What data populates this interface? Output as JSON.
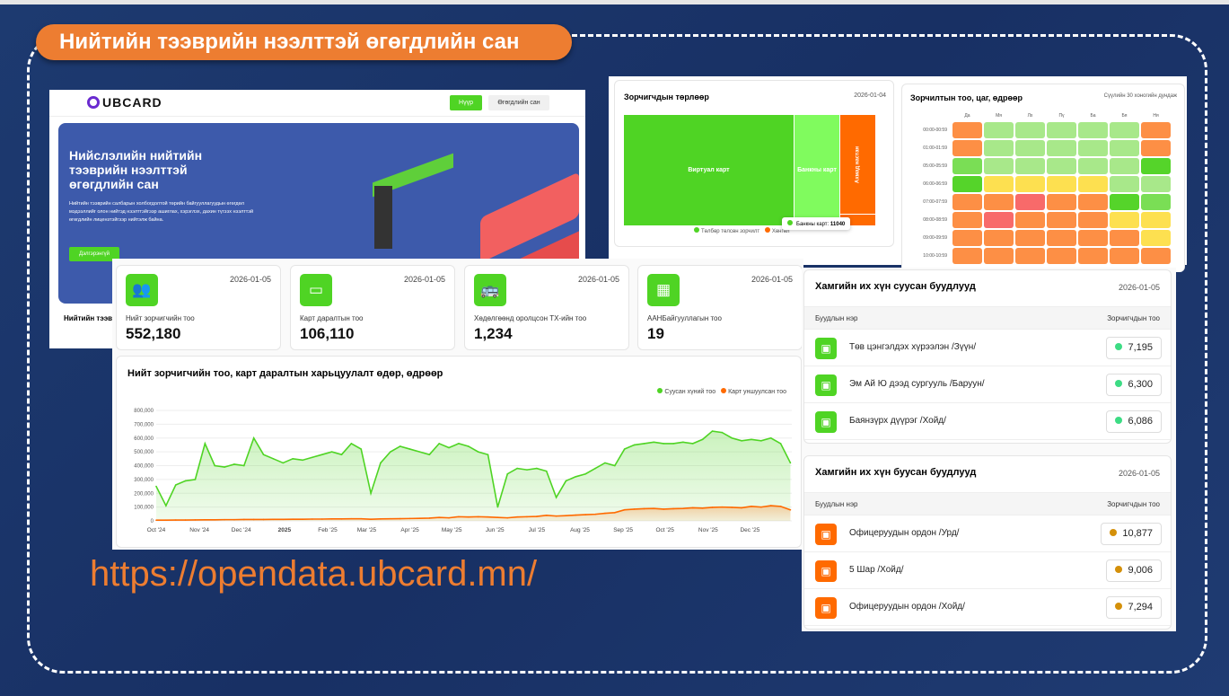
{
  "slide": {
    "title": "Нийтийн тээврийн нээлттэй өгөгдлийн сан",
    "url": "https://opendata.ubcard.mn/"
  },
  "landing": {
    "logo": "UBCARD",
    "nav": [
      "Нүүр",
      "Өгөгдлийн сан"
    ],
    "hero_title": "Нийслэлийн нийтийн тээврийн нээлттэй өгөгдлийн сан",
    "hero_text": "Нийтийн тээврийн салбарын холбогдолтой төрийн байгууллагуудын өгөгдөл мэдээллийг олон нийтэд нээлттэйгээр ашиглах, хэрэглэх, дахин түгээх нээлттэй өгөгдлийн лицензтэйгээр нийтэлж байна.",
    "more_button": "Дэлгэрэнгүй",
    "section_label": "Нийтийн тээвр"
  },
  "stats": [
    {
      "icon": "users-icon",
      "glyph": "👥",
      "date": "2026-01-05",
      "label": "Нийт зорчигчийн тоо",
      "value": "552,180"
    },
    {
      "icon": "card-icon",
      "glyph": "▭",
      "date": "2026-01-05",
      "label": "Карт даралтын тоо",
      "value": "106,110"
    },
    {
      "icon": "bus-icon",
      "glyph": "🚌",
      "date": "2026-01-05",
      "label": "Хөдөлгөөнд оролцсон ТХ-ийн тоо",
      "value": "1,234"
    },
    {
      "icon": "building-icon",
      "glyph": "▦",
      "date": "2026-01-05",
      "label": "ААНБайгууллагын тоо",
      "value": "19"
    }
  ],
  "treemap": {
    "title": "Зорчигчдын төрлөөр",
    "date": "2026-01-04",
    "tiles": [
      "Виртуал карт",
      "Банкны карт",
      "Ахмад настан"
    ],
    "legend": [
      "Төлбөр төлсөн зорчилт",
      "Хөнгөл"
    ],
    "tooltip": {
      "label": "Банкны карт:",
      "value": "11040"
    },
    "colors": {
      "paid": "#4fd424",
      "paid_light": "#80fb5e",
      "discount": "#ff6a00"
    }
  },
  "heatmap": {
    "title": "Зорчилтын тоо, цаг, өдрөөр",
    "subtitle": "Сүүлийн 30 хоногийн дундаж",
    "days": [
      "Да",
      "Мя",
      "Лх",
      "Пү",
      "Ба",
      "Бя",
      "Ня"
    ],
    "hours": [
      "00:00-00:59",
      "01:00-01:59",
      "05:00-05:59",
      "06:00-06:59",
      "07:00-07:59",
      "08:00-08:59",
      "09:00-09:59",
      "10:00-10:59"
    ],
    "palette": {
      "O": "#fd8f45",
      "L": "#a8e88a",
      "G": "#7ade55",
      "D": "#55d42a",
      "Y": "#fde050",
      "R": "#f86a6a"
    },
    "cells": [
      [
        "O",
        "L",
        "L",
        "L",
        "L",
        "L",
        "O"
      ],
      [
        "O",
        "L",
        "L",
        "L",
        "L",
        "L",
        "O"
      ],
      [
        "G",
        "L",
        "L",
        "L",
        "L",
        "L",
        "D"
      ],
      [
        "D",
        "Y",
        "Y",
        "Y",
        "Y",
        "L",
        "L"
      ],
      [
        "O",
        "O",
        "R",
        "O",
        "O",
        "D",
        "G"
      ],
      [
        "O",
        "R",
        "O",
        "O",
        "O",
        "Y",
        "Y"
      ],
      [
        "O",
        "O",
        "O",
        "O",
        "O",
        "O",
        "Y"
      ],
      [
        "O",
        "O",
        "O",
        "O",
        "O",
        "O",
        "O"
      ]
    ]
  },
  "boarded": {
    "title": "Хамгийн их хүн суусан буудлууд",
    "date": "2026-01-05",
    "col_name": "Буудлын нэр",
    "col_count": "Зорчигчдын тоо",
    "color": "#4fd424",
    "dot": "#3ddc84",
    "rows": [
      {
        "name": "Төв цэнгэлдэх хүрээлэн /Зүүн/",
        "count": "7,195"
      },
      {
        "name": "Эм Ай Ю дээд сургууль /Баруун/",
        "count": "6,300"
      },
      {
        "name": "Баянзүрх дүүрэг /Хойд/",
        "count": "6,086"
      }
    ]
  },
  "alighted": {
    "title": "Хамгийн их хүн буусан буудлууд",
    "date": "2026-01-05",
    "col_name": "Буудлын нэр",
    "col_count": "Зорчигчдын тоо",
    "color": "#ff6a00",
    "dot": "#d4900a",
    "rows": [
      {
        "name": "Офицеруудын ордон /Урд/",
        "count": "10,877"
      },
      {
        "name": "5 Шар /Хойд/",
        "count": "9,006"
      },
      {
        "name": "Офицеруудын ордон /Хойд/",
        "count": "7,294"
      }
    ]
  },
  "chart_data": {
    "type": "line",
    "title": "Нийт зорчигчийн тоо, карт даралтын харьцуулалт өдөр, өдрөөр",
    "ylim": [
      0,
      800000
    ],
    "yticks": [
      "0",
      "100,000",
      "200,000",
      "300,000",
      "400,000",
      "500,000",
      "600,000",
      "700,000",
      "800,000"
    ],
    "xticks": [
      {
        "label": "Oct '24",
        "date": "2024-10-01"
      },
      {
        "label": "Nov '24",
        "date": "2024-11-01"
      },
      {
        "label": "Dec '24",
        "date": "2024-12-01"
      },
      {
        "label": "2025",
        "date": "2025-01-01",
        "bold": true
      },
      {
        "label": "Feb '25",
        "date": "2025-02-01"
      },
      {
        "label": "Mar '25",
        "date": "2025-03-01"
      },
      {
        "label": "Apr '25",
        "date": "2025-04-01"
      },
      {
        "label": "May '25",
        "date": "2025-05-01"
      },
      {
        "label": "Jun '25",
        "date": "2025-06-01"
      },
      {
        "label": "Jul '25",
        "date": "2025-07-01"
      },
      {
        "label": "Aug '25",
        "date": "2025-08-01"
      },
      {
        "label": "Sep '25",
        "date": "2025-09-01"
      },
      {
        "label": "Oct '25",
        "date": "2025-10-01"
      },
      {
        "label": "Nov '25",
        "date": "2025-11-01"
      },
      {
        "label": "Dec '25",
        "date": "2025-12-01"
      }
    ],
    "xlim": [
      "2024-10-01",
      "2025-12-31"
    ],
    "legend": "top-right",
    "grid": true,
    "x": [
      "2024-10-01",
      "2024-10-08",
      "2024-10-15",
      "2024-10-22",
      "2024-10-29",
      "2024-11-05",
      "2024-11-12",
      "2024-11-19",
      "2024-11-26",
      "2024-12-03",
      "2024-12-10",
      "2024-12-17",
      "2024-12-24",
      "2024-12-31",
      "2025-01-07",
      "2025-01-14",
      "2025-01-21",
      "2025-01-28",
      "2025-02-04",
      "2025-02-11",
      "2025-02-18",
      "2025-02-25",
      "2025-03-04",
      "2025-03-11",
      "2025-03-18",
      "2025-03-25",
      "2025-04-01",
      "2025-04-08",
      "2025-04-15",
      "2025-04-22",
      "2025-04-29",
      "2025-05-06",
      "2025-05-13",
      "2025-05-20",
      "2025-05-27",
      "2025-06-03",
      "2025-06-10",
      "2025-06-17",
      "2025-06-24",
      "2025-07-01",
      "2025-07-08",
      "2025-07-15",
      "2025-07-22",
      "2025-07-29",
      "2025-08-05",
      "2025-08-12",
      "2025-08-19",
      "2025-08-26",
      "2025-09-02",
      "2025-09-09",
      "2025-09-16",
      "2025-09-23",
      "2025-09-30",
      "2025-10-07",
      "2025-10-14",
      "2025-10-21",
      "2025-10-28",
      "2025-11-04",
      "2025-11-11",
      "2025-11-18",
      "2025-11-25",
      "2025-12-02",
      "2025-12-09",
      "2025-12-16",
      "2025-12-23",
      "2025-12-30"
    ],
    "series": [
      {
        "name": "Суусан хүний тоо",
        "color": "#4fd424",
        "values": [
          250000,
          110000,
          260000,
          290000,
          300000,
          560000,
          400000,
          390000,
          410000,
          400000,
          600000,
          480000,
          450000,
          420000,
          450000,
          440000,
          460000,
          480000,
          500000,
          480000,
          560000,
          520000,
          200000,
          420000,
          500000,
          540000,
          520000,
          500000,
          480000,
          560000,
          530000,
          560000,
          540000,
          500000,
          480000,
          100000,
          340000,
          380000,
          370000,
          380000,
          360000,
          170000,
          290000,
          320000,
          340000,
          380000,
          420000,
          400000,
          520000,
          550000,
          560000,
          570000,
          560000,
          560000,
          570000,
          560000,
          590000,
          650000,
          640000,
          600000,
          580000,
          590000,
          580000,
          600000,
          560000,
          420000
        ]
      },
      {
        "name": "Карт уншуулсан тоо",
        "color": "#ff6a00",
        "values": [
          5000,
          5000,
          6000,
          6000,
          7000,
          8000,
          8000,
          9000,
          9000,
          10000,
          10000,
          10000,
          11000,
          11000,
          12000,
          12000,
          13000,
          13000,
          14000,
          14000,
          15000,
          15000,
          12000,
          14000,
          15000,
          16000,
          17000,
          18000,
          20000,
          25000,
          22000,
          30000,
          28000,
          30000,
          28000,
          25000,
          22000,
          28000,
          30000,
          32000,
          40000,
          35000,
          38000,
          42000,
          45000,
          48000,
          55000,
          60000,
          80000,
          85000,
          88000,
          90000,
          85000,
          88000,
          90000,
          95000,
          92000,
          98000,
          100000,
          98000,
          95000,
          105000,
          100000,
          110000,
          105000,
          80000
        ]
      }
    ]
  }
}
